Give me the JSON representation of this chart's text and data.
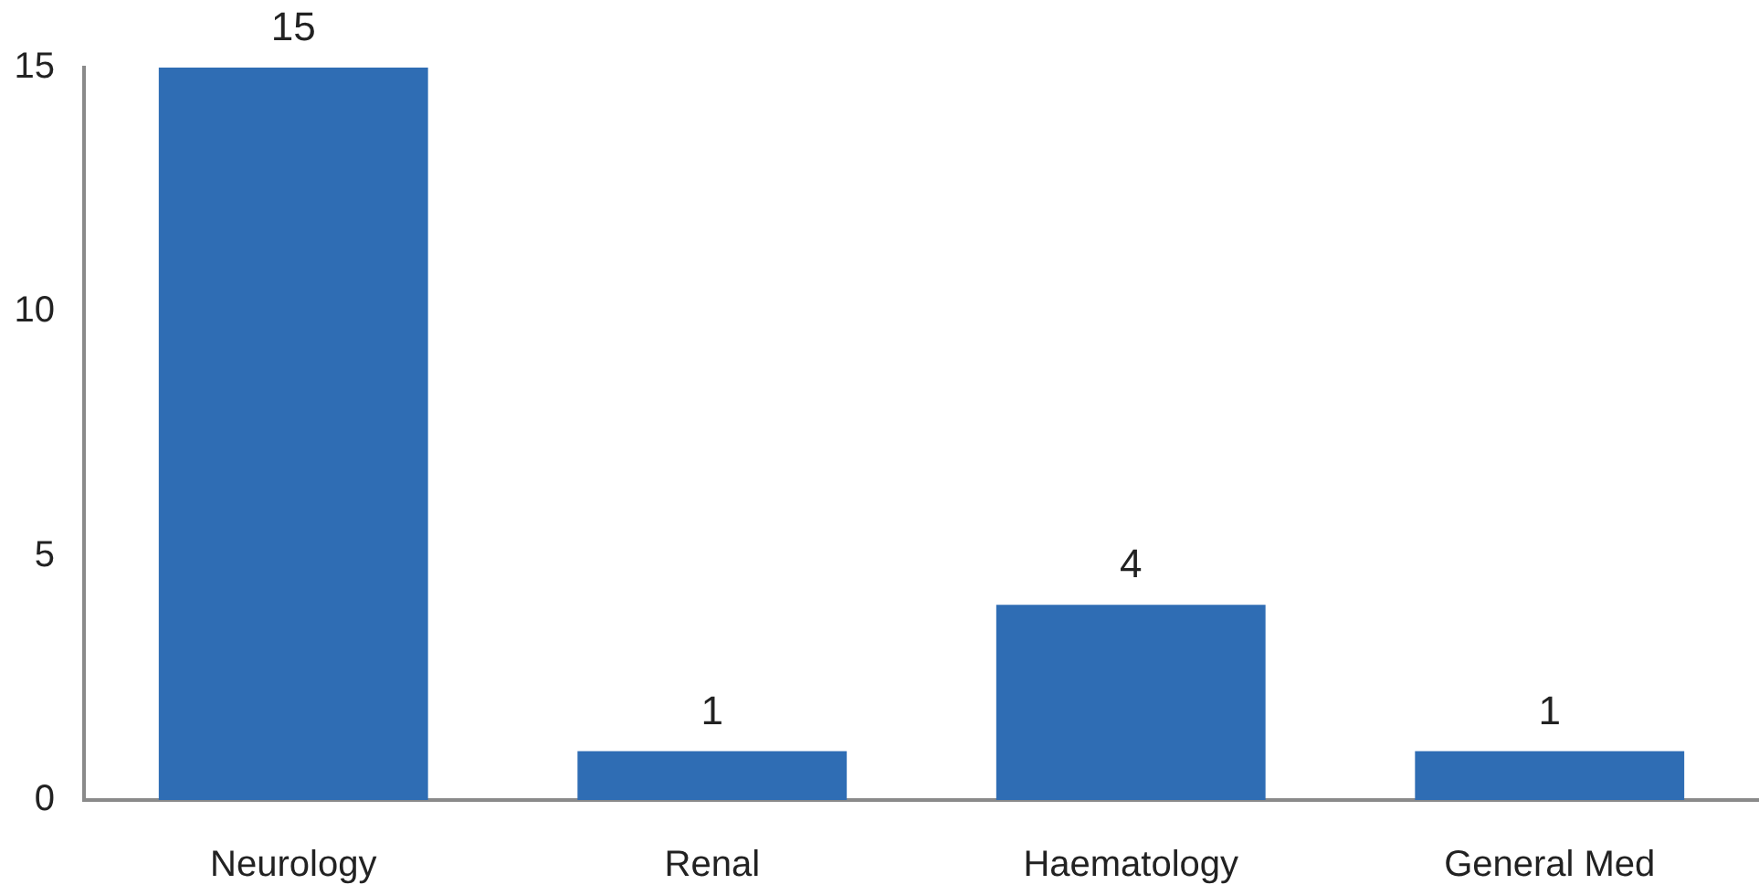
{
  "chart_data": {
    "type": "bar",
    "categories": [
      "Neurology",
      "Renal",
      "Haematology",
      "General Med"
    ],
    "values": [
      15,
      1,
      4,
      1
    ],
    "color": "#2f6db4",
    "ylim": [
      0,
      15
    ],
    "yticks": [
      0,
      5,
      10,
      15
    ],
    "grid": false,
    "legend": false,
    "data_labels": true
  }
}
